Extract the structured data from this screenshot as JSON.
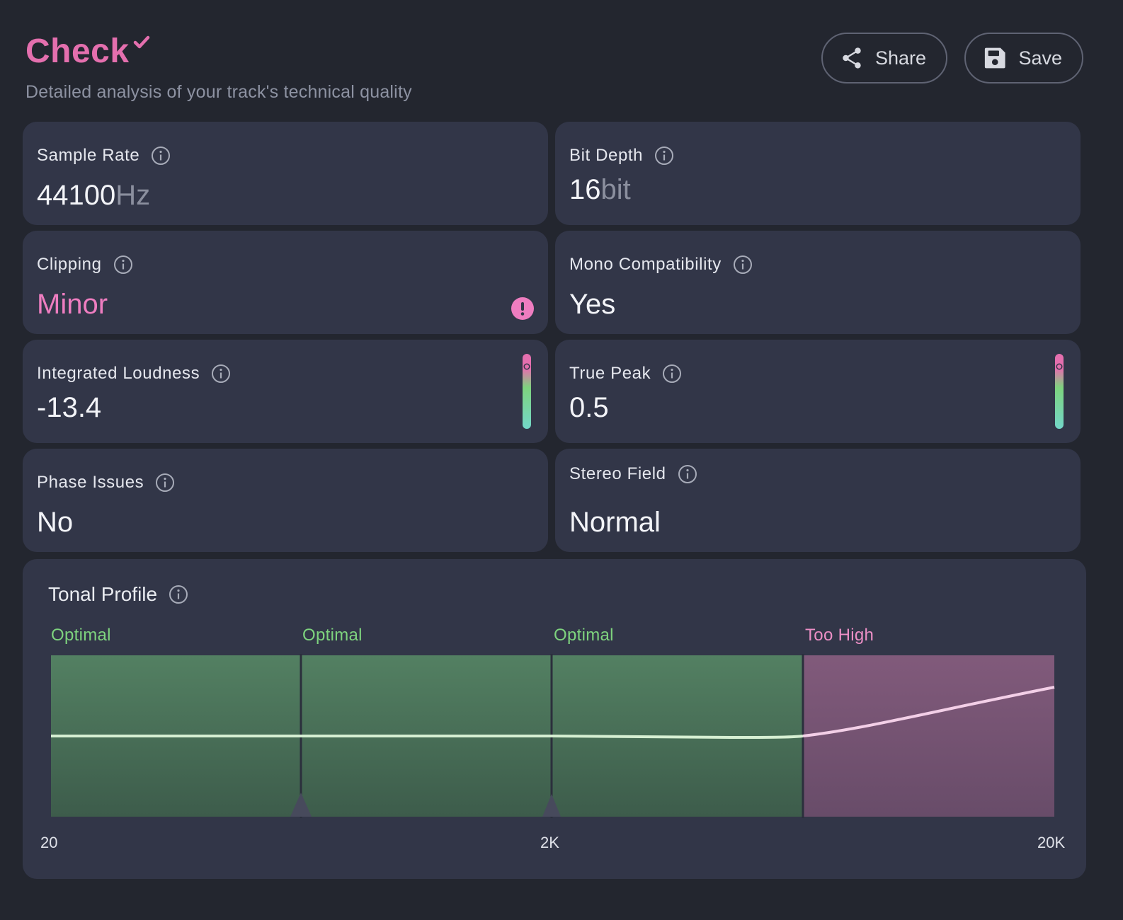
{
  "header": {
    "title": "Check",
    "subtitle": "Detailed analysis of your track's technical quality",
    "share_label": "Share",
    "save_label": "Save"
  },
  "metrics": {
    "sample_rate": {
      "label": "Sample Rate",
      "value": "44100",
      "unit": "Hz"
    },
    "bit_depth": {
      "label": "Bit Depth",
      "value": "16",
      "unit": "bit"
    },
    "clipping": {
      "label": "Clipping",
      "value": "Minor",
      "status": "warning"
    },
    "mono_compatibility": {
      "label": "Mono Compatibility",
      "value": "Yes"
    },
    "integrated_loudness": {
      "label": "Integrated Loudness",
      "value": "-13.4"
    },
    "true_peak": {
      "label": "True Peak",
      "value": "0.5"
    },
    "phase_issues": {
      "label": "Phase Issues",
      "value": "No"
    },
    "stereo_field": {
      "label": "Stereo Field",
      "value": "Normal"
    }
  },
  "tonal_profile": {
    "title": "Tonal Profile",
    "bands": [
      {
        "label": "Optimal",
        "status": "optimal",
        "color": "#4f7a5a"
      },
      {
        "label": "Optimal",
        "status": "optimal",
        "color": "#4f7a5a"
      },
      {
        "label": "Optimal",
        "status": "optimal",
        "color": "#4f7a5a"
      },
      {
        "label": "Too High",
        "status": "too-high",
        "color": "#7a5576"
      }
    ],
    "x_ticks": [
      "20",
      "2K",
      "20K"
    ]
  },
  "colors": {
    "accent": "#e46fae",
    "optimal": "#7ed37e",
    "too_high": "#ec8fc6",
    "background": "#23262f",
    "card": "#323648"
  }
}
